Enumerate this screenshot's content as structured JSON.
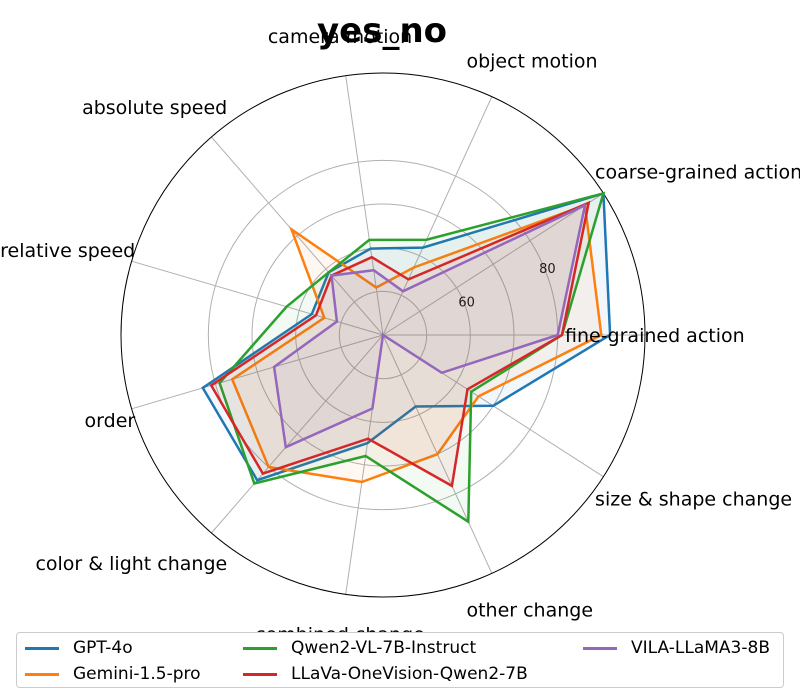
{
  "chart_data": {
    "type": "radar",
    "title": "yes_no",
    "axes": [
      "fine-grained action",
      "coarse-grained action",
      "object motion",
      "camera motion",
      "absolute speed",
      "relative speed",
      "order",
      "color & light change",
      "combined change",
      "other change",
      "size & shape change"
    ],
    "rlim": [
      40,
      100
    ],
    "r_ticks": [
      60,
      80
    ],
    "grid": true,
    "legend_position": "bottom",
    "series": [
      {
        "name": "GPT-4o",
        "color": "#1f77b4",
        "values": [
          92,
          100,
          62,
          60,
          59,
          57,
          83,
          84,
          65,
          58,
          70
        ]
      },
      {
        "name": "Gemini-1.5-pro",
        "color": "#ff7f0e",
        "values": [
          90,
          95,
          57,
          51,
          72,
          54,
          76,
          80,
          74,
          70,
          66
        ]
      },
      {
        "name": "Qwen2-VL-7B-Instruct",
        "color": "#2ca02c",
        "values": [
          81,
          100,
          64,
          62,
          59,
          63,
          79,
          85,
          68,
          87,
          64
        ]
      },
      {
        "name": "LLaVa-OneVision-Qwen2-7B",
        "color": "#d62728",
        "values": [
          81,
          96,
          54,
          58,
          58,
          56,
          81,
          82,
          64,
          78,
          63
        ]
      },
      {
        "name": "VILA-LLaMA3-8B",
        "color": "#9467bd",
        "values": [
          80,
          95,
          51,
          55,
          58,
          51,
          66,
          74,
          57,
          40,
          56
        ]
      }
    ]
  }
}
